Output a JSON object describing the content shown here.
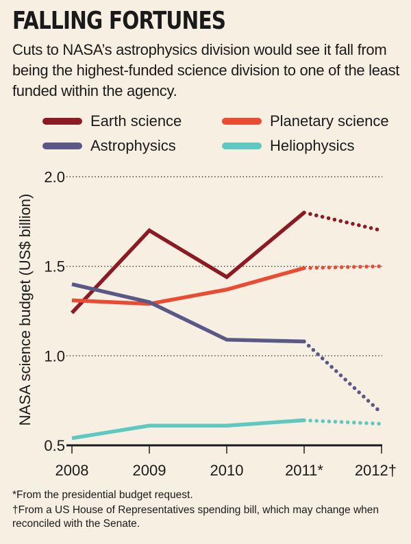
{
  "title": "FALLING FORTUNES",
  "subtitle": "Cuts to NASA’s astrophysics division would see it fall from being the highest-funded science division to one of the least funded within the agency.",
  "footnotes": [
    "*From the presidential budget request.",
    "†From a US House of Representatives spending bill, which may change when reconciled with the Senate."
  ],
  "chart_data": {
    "type": "line",
    "title": "FALLING FORTUNES",
    "xlabel": "",
    "ylabel": "NASA science budget (US$ billion)",
    "categories": [
      "2008",
      "2009",
      "2010",
      "2011*",
      "2012†"
    ],
    "ylim": [
      0.5,
      2.0
    ],
    "yticks": [
      "0.5",
      "1.0",
      "1.5",
      "2.0"
    ],
    "grid": "dotted horizontal",
    "legend_position": "top",
    "projected_from_index": 3,
    "series": [
      {
        "name": "Earth science",
        "color": "#8b1a24",
        "values": [
          1.24,
          1.7,
          1.44,
          1.8,
          1.7
        ]
      },
      {
        "name": "Planetary science",
        "color": "#ea4b33",
        "values": [
          1.31,
          1.29,
          1.37,
          1.49,
          1.5
        ]
      },
      {
        "name": "Astrophysics",
        "color": "#5a5886",
        "values": [
          1.4,
          1.3,
          1.09,
          1.08,
          0.68
        ]
      },
      {
        "name": "Heliophysics",
        "color": "#5fc8c0",
        "values": [
          0.54,
          0.61,
          0.61,
          0.64,
          0.62
        ]
      }
    ]
  }
}
